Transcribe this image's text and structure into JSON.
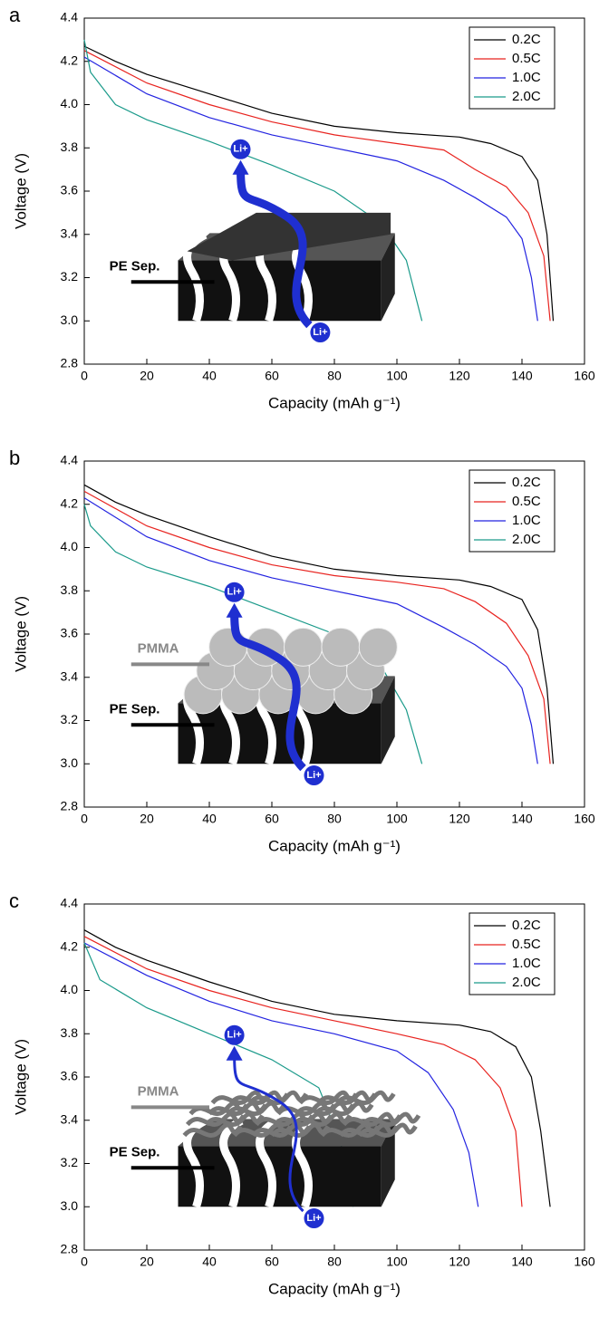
{
  "chart_data": [
    {
      "type": "line",
      "panel_label": "a",
      "xlabel": "Capacity (mAh g⁻¹)",
      "ylabel": "Voltage (V)",
      "xlim": [
        0,
        160
      ],
      "ylim": [
        2.8,
        4.4
      ],
      "xticks": [
        0,
        20,
        40,
        60,
        80,
        100,
        120,
        140,
        160
      ],
      "yticks": [
        2.8,
        {
          "value": 3,
          "label": "3.0"
        },
        3.2,
        3.4,
        3.6,
        3.8,
        {
          "value": 4,
          "label": "4.0"
        },
        4.2,
        4.4
      ],
      "legend": "upper right",
      "annotations": [
        "PE Sep.",
        "Li+",
        "Li+"
      ],
      "series": [
        {
          "name": "0.2C",
          "color": "#000000",
          "x": [
            0,
            10,
            20,
            40,
            60,
            80,
            100,
            120,
            130,
            140,
            145,
            148,
            150
          ],
          "values": [
            4.27,
            4.2,
            4.14,
            4.05,
            3.96,
            3.9,
            3.87,
            3.85,
            3.82,
            3.76,
            3.65,
            3.4,
            3.0
          ]
        },
        {
          "name": "0.5C",
          "color": "#e8231f",
          "x": [
            0,
            20,
            40,
            60,
            80,
            100,
            115,
            125,
            135,
            142,
            147,
            149
          ],
          "values": [
            4.25,
            4.1,
            4.0,
            3.92,
            3.86,
            3.82,
            3.79,
            3.7,
            3.62,
            3.5,
            3.3,
            3.0
          ]
        },
        {
          "name": "1.0C",
          "color": "#2323e0",
          "x": [
            0,
            20,
            40,
            60,
            80,
            100,
            115,
            125,
            135,
            140,
            143,
            145
          ],
          "values": [
            4.22,
            4.05,
            3.94,
            3.86,
            3.8,
            3.74,
            3.65,
            3.57,
            3.48,
            3.38,
            3.2,
            3.0
          ]
        },
        {
          "name": "2.0C",
          "color": "#1a9a8a",
          "x": [
            0,
            2,
            10,
            20,
            40,
            60,
            80,
            95,
            103,
            108
          ],
          "values": [
            4.3,
            4.15,
            4.0,
            3.93,
            3.83,
            3.72,
            3.6,
            3.45,
            3.28,
            3.0
          ]
        }
      ]
    },
    {
      "type": "line",
      "panel_label": "b",
      "xlabel": "Capacity (mAh g⁻¹)",
      "ylabel": "Voltage (V)",
      "xlim": [
        0,
        160
      ],
      "ylim": [
        2.8,
        4.4
      ],
      "xticks": [
        0,
        20,
        40,
        60,
        80,
        100,
        120,
        140,
        160
      ],
      "yticks": [
        2.8,
        {
          "value": 3,
          "label": "3.0"
        },
        3.2,
        3.4,
        3.6,
        3.8,
        {
          "value": 4,
          "label": "4.0"
        },
        4.2,
        4.4
      ],
      "legend": "upper right",
      "annotations": [
        "PMMA",
        "PE Sep.",
        "Li+",
        "Li+"
      ],
      "series": [
        {
          "name": "0.2C",
          "color": "#000000",
          "x": [
            0,
            10,
            20,
            40,
            60,
            80,
            100,
            120,
            130,
            140,
            145,
            148,
            150
          ],
          "values": [
            4.29,
            4.21,
            4.15,
            4.05,
            3.96,
            3.9,
            3.87,
            3.85,
            3.82,
            3.76,
            3.62,
            3.35,
            3.0
          ]
        },
        {
          "name": "0.5C",
          "color": "#e8231f",
          "x": [
            0,
            20,
            40,
            60,
            80,
            100,
            115,
            125,
            135,
            142,
            147,
            149
          ],
          "values": [
            4.26,
            4.1,
            4.0,
            3.92,
            3.87,
            3.84,
            3.81,
            3.75,
            3.65,
            3.5,
            3.3,
            3.0
          ]
        },
        {
          "name": "1.0C",
          "color": "#2323e0",
          "x": [
            0,
            20,
            40,
            60,
            80,
            100,
            115,
            125,
            135,
            140,
            143,
            145
          ],
          "values": [
            4.23,
            4.05,
            3.94,
            3.86,
            3.8,
            3.74,
            3.63,
            3.55,
            3.45,
            3.35,
            3.18,
            3.0
          ]
        },
        {
          "name": "2.0C",
          "color": "#1a9a8a",
          "x": [
            0,
            2,
            10,
            20,
            40,
            60,
            80,
            95,
            103,
            108
          ],
          "values": [
            4.2,
            4.1,
            3.98,
            3.91,
            3.82,
            3.71,
            3.6,
            3.45,
            3.25,
            3.0
          ]
        }
      ]
    },
    {
      "type": "line",
      "panel_label": "c",
      "xlabel": "Capacity (mAh g⁻¹)",
      "ylabel": "Voltage (V)",
      "xlim": [
        0,
        160
      ],
      "ylim": [
        2.8,
        4.4
      ],
      "xticks": [
        0,
        20,
        40,
        60,
        80,
        100,
        120,
        140,
        160
      ],
      "yticks": [
        2.8,
        {
          "value": 3,
          "label": "3.0"
        },
        3.2,
        3.4,
        3.6,
        3.8,
        {
          "value": 4,
          "label": "4.0"
        },
        4.2,
        4.4
      ],
      "legend": "upper right",
      "annotations": [
        "PMMA",
        "PE Sep.",
        "Li+",
        "Li+"
      ],
      "series": [
        {
          "name": "0.2C",
          "color": "#000000",
          "x": [
            0,
            10,
            20,
            40,
            60,
            80,
            100,
            120,
            130,
            138,
            143,
            146,
            149
          ],
          "values": [
            4.28,
            4.2,
            4.14,
            4.04,
            3.95,
            3.89,
            3.86,
            3.84,
            3.81,
            3.74,
            3.6,
            3.35,
            3.0
          ]
        },
        {
          "name": "0.5C",
          "color": "#e8231f",
          "x": [
            0,
            20,
            40,
            60,
            80,
            100,
            115,
            125,
            133,
            138,
            140
          ],
          "values": [
            4.25,
            4.1,
            4.0,
            3.92,
            3.86,
            3.8,
            3.75,
            3.68,
            3.55,
            3.35,
            3.0
          ]
        },
        {
          "name": "1.0C",
          "color": "#2323e0",
          "x": [
            0,
            20,
            40,
            60,
            80,
            100,
            110,
            118,
            123,
            126
          ],
          "values": [
            4.22,
            4.07,
            3.95,
            3.86,
            3.8,
            3.72,
            3.62,
            3.45,
            3.25,
            3.0
          ]
        },
        {
          "name": "2.0C",
          "color": "#1a9a8a",
          "x": [
            0,
            5,
            20,
            40,
            60,
            75,
            82,
            86
          ],
          "values": [
            4.22,
            4.05,
            3.92,
            3.8,
            3.68,
            3.55,
            3.3,
            3.0
          ]
        }
      ]
    }
  ]
}
